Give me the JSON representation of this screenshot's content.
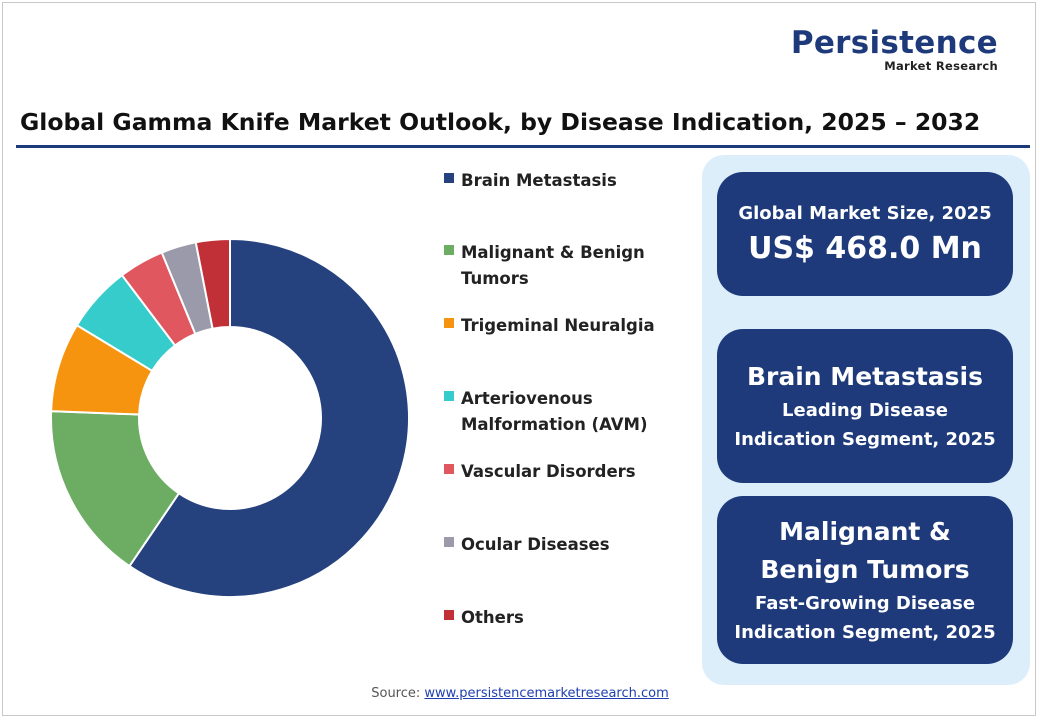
{
  "brand": {
    "name": "Persistence",
    "sub": "Market Research"
  },
  "title": "Global Gamma Knife Market Outlook, by Disease Indication, 2025 – 2032",
  "chart_data": {
    "type": "pie",
    "variant": "donut",
    "title": "Global Gamma Knife Market Outlook, by Disease Indication, 2025 – 2032",
    "categories": [
      "Brain Metastasis",
      "Malignant & Benign Tumors",
      "Trigeminal Neuralgia",
      "Arteriovenous Malformation (AVM)",
      "Vascular Disorders",
      "Ocular Diseases",
      "Others"
    ],
    "values": [
      58.3,
      15.8,
      7.9,
      5.9,
      4.0,
      3.1,
      3.0
    ],
    "colors": [
      "#25427f",
      "#6cac63",
      "#f6930f",
      "#36cccb",
      "#e0575f",
      "#9a9aaa",
      "#c12f37"
    ],
    "legend_position": "right"
  },
  "legend": {
    "items": [
      {
        "label": "Brain Metastasis",
        "color": "#25427f"
      },
      {
        "label": "Malignant & Benign Tumors",
        "color": "#6cac63"
      },
      {
        "label": "Trigeminal Neuralgia",
        "color": "#f6930f"
      },
      {
        "label": "Arteriovenous Malformation (AVM)",
        "color": "#36cccb"
      },
      {
        "label": "Vascular Disorders",
        "color": "#e0575f"
      },
      {
        "label": "Ocular Diseases",
        "color": "#9a9aaa"
      },
      {
        "label": "Others",
        "color": "#c12f37"
      }
    ]
  },
  "cards": {
    "market_size": {
      "label": "Global Market Size, 2025",
      "value": "US$ 468.0 Mn"
    },
    "leading": {
      "segment": "Brain Metastasis",
      "line1": "Leading Disease",
      "line2": "Indication Segment, 2025"
    },
    "fastest": {
      "segment_line1": "Malignant &",
      "segment_line2": "Benign Tumors",
      "line1": "Fast-Growing Disease",
      "line2": "Indication Segment, 2025"
    }
  },
  "source": {
    "label": "Source:",
    "link": "www.persistencemarketresearch.com"
  }
}
